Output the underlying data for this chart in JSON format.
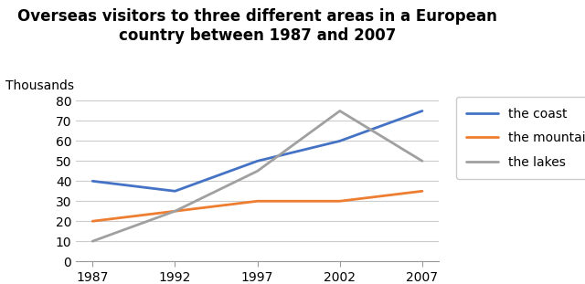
{
  "title_line1": "Overseas visitors to three different areas in a European",
  "title_line2": "country between 1987 and 2007",
  "ylabel": "Thousands",
  "years": [
    1987,
    1992,
    1997,
    2002,
    2007
  ],
  "series": [
    {
      "label": "the coast",
      "values": [
        40,
        35,
        50,
        60,
        75
      ],
      "color": "#4472C4",
      "linewidth": 2.0
    },
    {
      "label": "the mountains",
      "values": [
        20,
        25,
        30,
        30,
        35
      ],
      "color": "#ED7D31",
      "linewidth": 2.0
    },
    {
      "label": "the lakes",
      "values": [
        10,
        25,
        45,
        75,
        50
      ],
      "color": "#A0A0A0",
      "linewidth": 2.0
    }
  ],
  "ylim": [
    0,
    85
  ],
  "yticks": [
    0,
    10,
    20,
    30,
    40,
    50,
    60,
    70,
    80
  ],
  "xticks": [
    1987,
    1992,
    1997,
    2002,
    2007
  ],
  "background_color": "#FFFFFF",
  "grid_color": "#CCCCCC",
  "title_fontsize": 12,
  "legend_fontsize": 10,
  "tick_fontsize": 10,
  "ylabel_fontsize": 10
}
